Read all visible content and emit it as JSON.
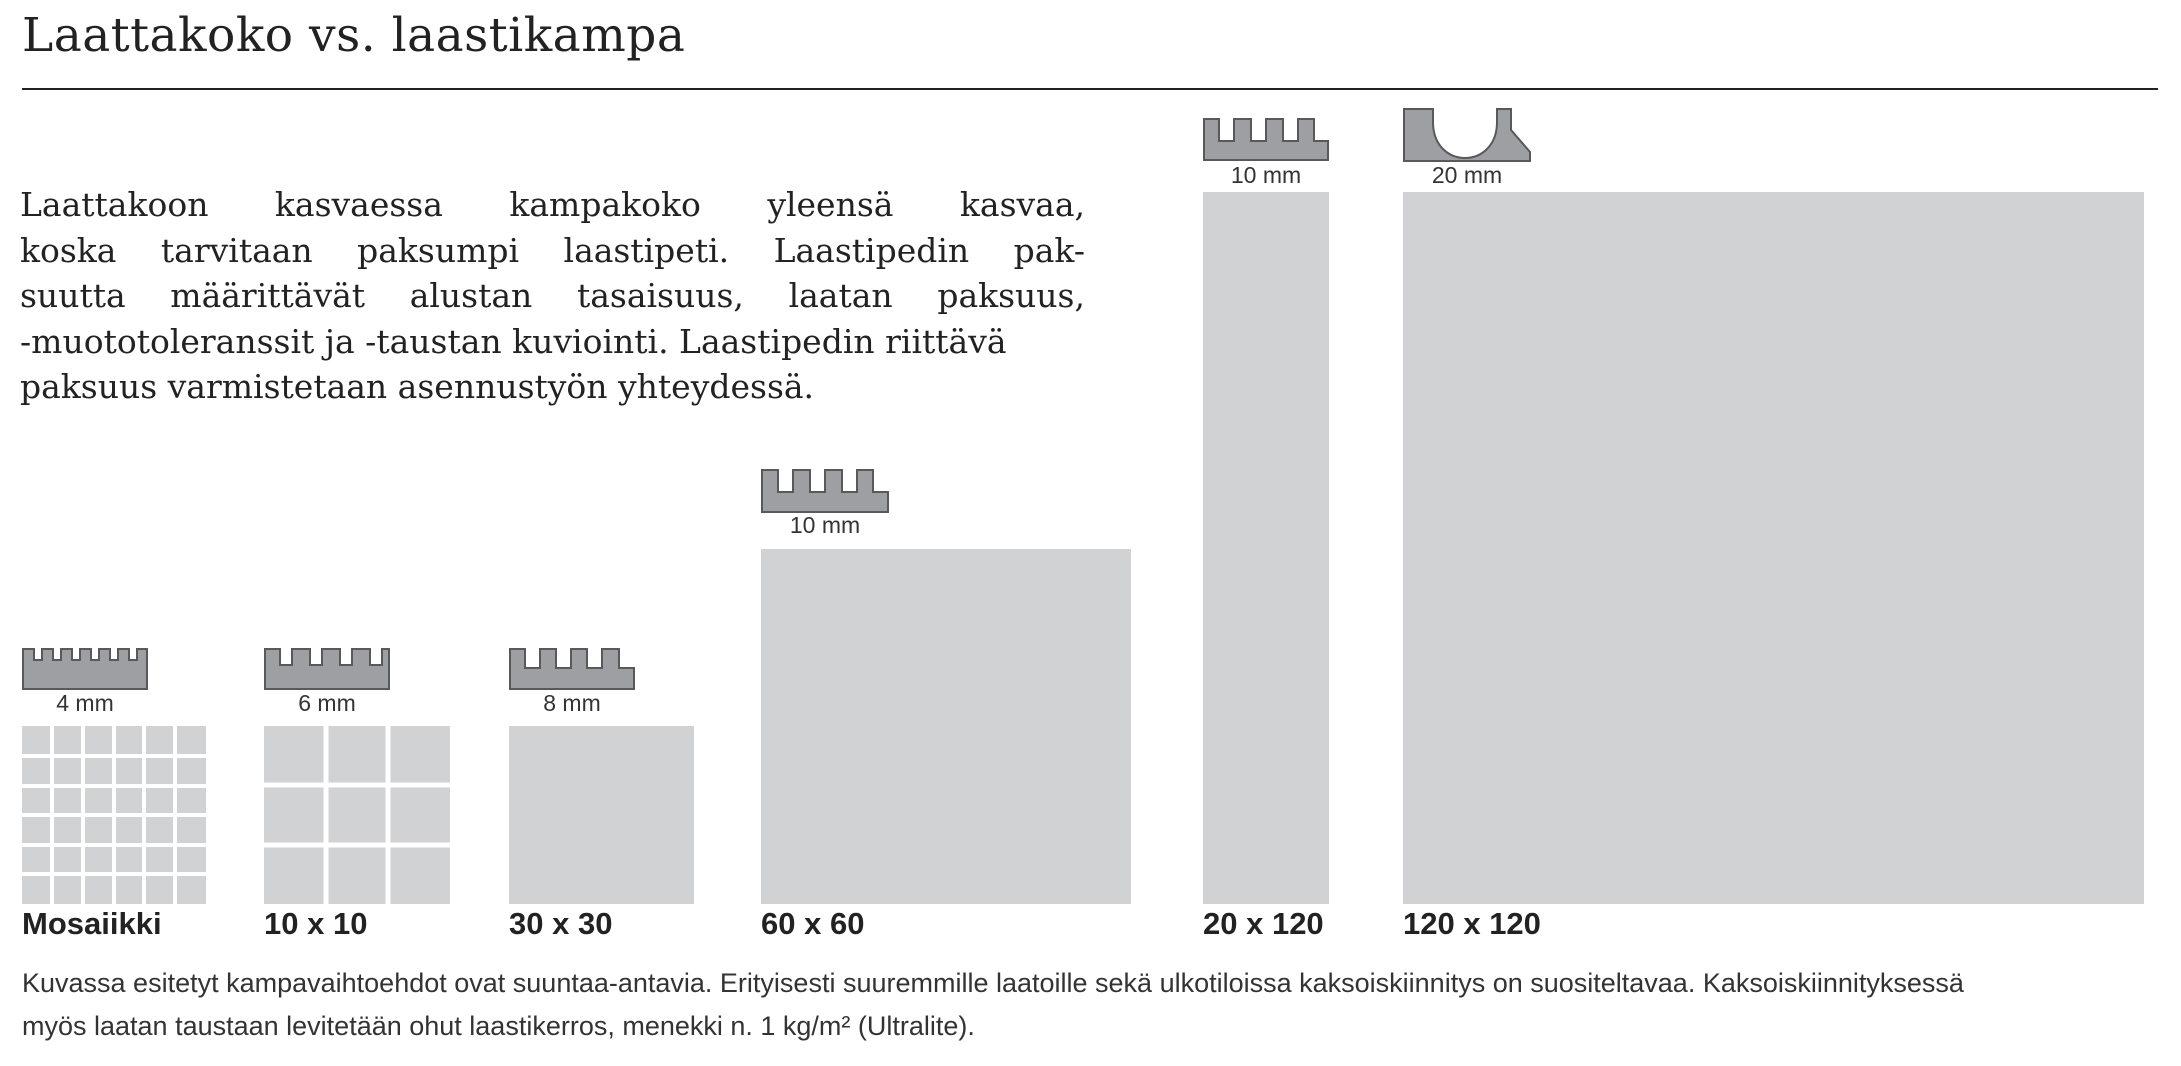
{
  "title": "Laattakoko vs. laastikampa",
  "intro_lines": [
    "Laattakoon kasvaessa kampakoko yleensä kasvaa,",
    "koska tarvitaan paksumpi laastipeti. Laastipedin pak-",
    "suutta määrittävät alustan tasaisuus, laatan paksuus,",
    "-muototoleranssit ja -taustan kuviointi. Laastipedin riittävä",
    "paksuus varmistetaan asennustyön yhteydessä."
  ],
  "tiles": [
    {
      "label": "Mosaiikki",
      "comb": "4 mm",
      "notch": "square",
      "notches": 6
    },
    {
      "label": "10 x 10",
      "comb": "6 mm",
      "notch": "square",
      "notches": 4
    },
    {
      "label": "30 x 30",
      "comb": "8 mm",
      "notch": "square",
      "notches": 3
    },
    {
      "label": "60 x 60",
      "comb": "10 mm",
      "notch": "square",
      "notches": 3
    },
    {
      "label": "20 x 120",
      "comb": "10 mm",
      "notch": "square",
      "notches": 3
    },
    {
      "label": "120 x 120",
      "comb": "20 mm",
      "notch": "round",
      "notches": 1
    }
  ],
  "footnote_lines": [
    "Kuvassa esitetyt kampavaihtoehdot ovat suuntaa-antavia. Erityisesti suuremmille laatoille sekä ulkotiloissa kaksoiskiinnitys on suositeltavaa. Kaksoiskiinnityksessä",
    "myös laatan taustaan levitetään ohut laastikerros, menekki n. 1 kg/m² (Ultralite)."
  ],
  "colors": {
    "tile": "#d1d2d4",
    "comb_fill": "#9d9fa2",
    "comb_stroke": "#58595b",
    "text": "#222222"
  }
}
